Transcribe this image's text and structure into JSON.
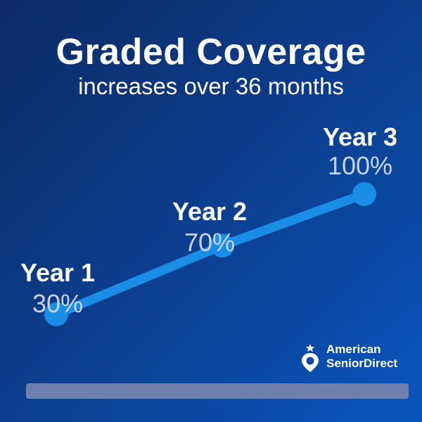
{
  "title": "Graded Coverage",
  "subtitle": "increases over 36 months",
  "chart_data": {
    "type": "line",
    "categories": [
      "Year 1",
      "Year 2",
      "Year 3"
    ],
    "values": [
      30,
      70,
      100
    ],
    "data_labels": [
      "30%",
      "70%",
      "100%"
    ],
    "ylim": [
      0,
      100
    ],
    "line_color": "#1a8ee6",
    "grid": false,
    "legend": "none"
  },
  "logo": {
    "line1": "American",
    "line2": "SeniorDirect"
  },
  "colors": {
    "background_start": "#0c2a66",
    "background_end": "#0a56bf",
    "accent": "#1a8ee6",
    "label_muted": "#c8d4ee",
    "bar": "#6f7fae"
  }
}
